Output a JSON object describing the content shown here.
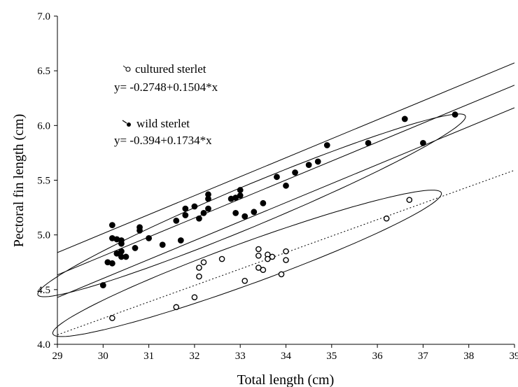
{
  "chart_data": {
    "type": "scatter",
    "title": "",
    "xlabel": "Total length (cm)",
    "ylabel": "Pectoral fin length (cm)",
    "xlim": [
      29,
      39
    ],
    "ylim": [
      4.0,
      7.0
    ],
    "x_ticks": [
      "29",
      "30",
      "31",
      "32",
      "33",
      "34",
      "35",
      "36",
      "37",
      "38",
      "39"
    ],
    "y_ticks": [
      "4.0",
      "4.5",
      "5.0",
      "5.5",
      "6.0",
      "6.5",
      "7.0"
    ],
    "grid": false,
    "legend_position": "top-left",
    "series": [
      {
        "name": "cultured sterlet",
        "marker": "open-circle",
        "equation": "y= -0.2748+0.1504*x",
        "fit": {
          "intercept": -0.2748,
          "slope": 0.1504,
          "style": "dotted"
        },
        "points": [
          [
            30.2,
            4.24
          ],
          [
            31.6,
            4.34
          ],
          [
            32.0,
            4.43
          ],
          [
            32.1,
            4.62
          ],
          [
            32.1,
            4.7
          ],
          [
            32.2,
            4.75
          ],
          [
            32.6,
            4.78
          ],
          [
            33.1,
            4.58
          ],
          [
            33.4,
            4.87
          ],
          [
            33.4,
            4.81
          ],
          [
            33.4,
            4.7
          ],
          [
            33.5,
            4.68
          ],
          [
            33.6,
            4.82
          ],
          [
            33.6,
            4.78
          ],
          [
            33.7,
            4.8
          ],
          [
            33.9,
            4.64
          ],
          [
            34.0,
            4.77
          ],
          [
            34.0,
            4.85
          ],
          [
            36.2,
            5.15
          ],
          [
            36.7,
            5.32
          ]
        ]
      },
      {
        "name": "wild sterlet",
        "marker": "filled-circle",
        "equation": "y= -0.394+0.1734*x",
        "fit": {
          "intercept": -0.394,
          "slope": 0.1734,
          "style": "solid"
        },
        "points": [
          [
            30.0,
            4.54
          ],
          [
            30.1,
            4.75
          ],
          [
            30.2,
            4.74
          ],
          [
            30.2,
            5.09
          ],
          [
            30.2,
            4.97
          ],
          [
            30.3,
            4.83
          ],
          [
            30.3,
            4.96
          ],
          [
            30.4,
            4.85
          ],
          [
            30.4,
            4.92
          ],
          [
            30.4,
            4.95
          ],
          [
            30.4,
            4.8
          ],
          [
            30.5,
            4.8
          ],
          [
            30.7,
            4.88
          ],
          [
            30.8,
            5.04
          ],
          [
            30.8,
            5.07
          ],
          [
            31.0,
            4.97
          ],
          [
            31.3,
            4.91
          ],
          [
            31.6,
            5.13
          ],
          [
            31.7,
            4.95
          ],
          [
            31.8,
            5.18
          ],
          [
            31.8,
            5.24
          ],
          [
            32.0,
            5.26
          ],
          [
            32.1,
            5.15
          ],
          [
            32.2,
            5.2
          ],
          [
            32.3,
            5.24
          ],
          [
            32.3,
            5.33
          ],
          [
            32.3,
            5.37
          ],
          [
            32.8,
            5.33
          ],
          [
            32.9,
            5.2
          ],
          [
            32.9,
            5.34
          ],
          [
            33.0,
            5.36
          ],
          [
            33.0,
            5.41
          ],
          [
            33.1,
            5.17
          ],
          [
            33.3,
            5.21
          ],
          [
            33.5,
            5.29
          ],
          [
            33.8,
            5.53
          ],
          [
            34.0,
            5.45
          ],
          [
            34.2,
            5.57
          ],
          [
            34.5,
            5.64
          ],
          [
            34.7,
            5.67
          ],
          [
            34.9,
            5.82
          ],
          [
            35.8,
            5.84
          ],
          [
            36.6,
            6.06
          ],
          [
            37.0,
            5.84
          ],
          [
            37.7,
            6.1
          ]
        ]
      }
    ],
    "wild_band": {
      "upper_intercept": -0.19,
      "lower_intercept": -0.6
    },
    "ellipses": [
      {
        "group": "wild sterlet",
        "center": [
          33.25,
          5.27
        ],
        "semi_axis_along": 4.75,
        "semi_axis_across": 0.2,
        "angle_deg": 9.84
      },
      {
        "group": "cultured sterlet",
        "center": [
          33.15,
          4.74
        ],
        "semi_axis_along": 4.3,
        "semi_axis_across": 0.2,
        "angle_deg": 8.55
      }
    ]
  }
}
